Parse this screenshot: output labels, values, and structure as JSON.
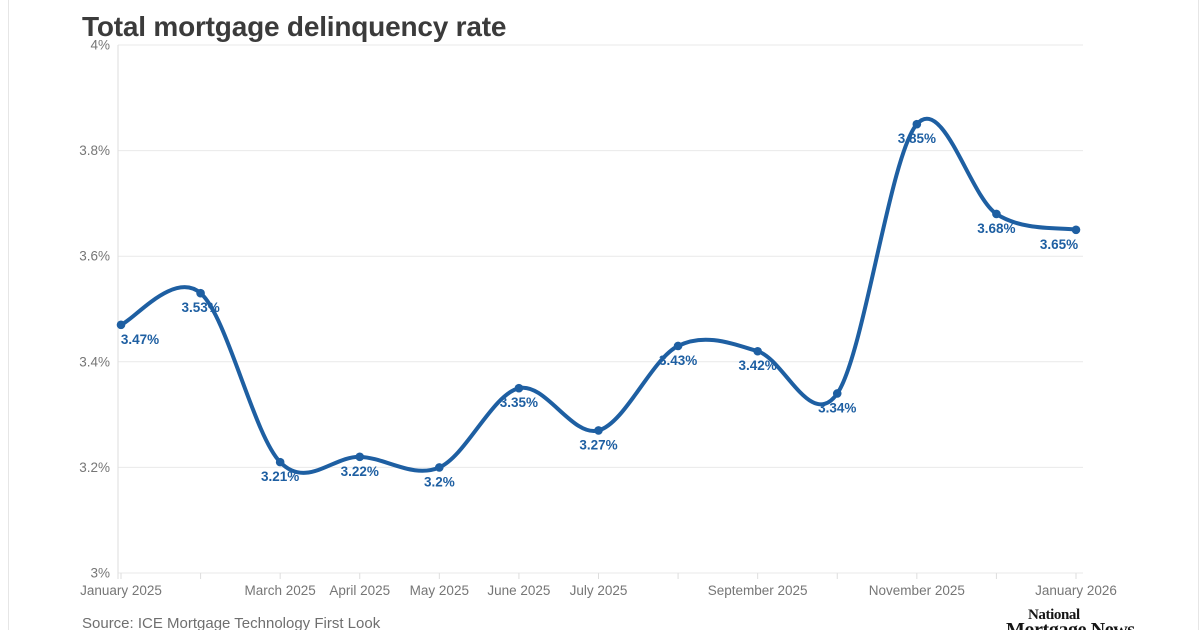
{
  "page": {
    "title": "Total mortgage delinquency rate",
    "source": "Source: ICE Mortgage Technology First Look",
    "logo": {
      "line1": "National",
      "line2": "Mortgage News"
    }
  },
  "chart_data": {
    "type": "line",
    "title": "Total mortgage delinquency rate",
    "values": [
      3.47,
      3.53,
      3.21,
      3.22,
      3.2,
      3.35,
      3.27,
      3.43,
      3.42,
      3.34,
      3.85,
      3.68,
      3.65
    ],
    "point_labels": [
      "3.47%",
      "3.53%",
      "3.21%",
      "3.22%",
      "3.2%",
      "3.35%",
      "3.27%",
      "3.43%",
      "3.42%",
      "3.34%",
      "3.85%",
      "3.68%",
      "3.65%"
    ],
    "ylim": [
      3.0,
      4.0
    ],
    "y_ticks": [
      {
        "value": 4.0,
        "label": "4%"
      },
      {
        "value": 3.8,
        "label": "3.8%"
      },
      {
        "value": 3.6,
        "label": "3.6%"
      },
      {
        "value": 3.4,
        "label": "3.4%"
      },
      {
        "value": 3.2,
        "label": "3.2%"
      },
      {
        "value": 3.0,
        "label": "3%"
      }
    ],
    "x_tick_labels": [
      {
        "index": 0,
        "label": "January 2025"
      },
      {
        "index": 2,
        "label": "March 2025"
      },
      {
        "index": 3,
        "label": "April 2025"
      },
      {
        "index": 4,
        "label": "May 2025"
      },
      {
        "index": 5,
        "label": "June 2025"
      },
      {
        "index": 6,
        "label": "July 2025"
      },
      {
        "index": 8,
        "label": "September 2025"
      },
      {
        "index": 10,
        "label": "November 2025"
      },
      {
        "index": 12,
        "label": "January 2026"
      }
    ],
    "grid": true,
    "legend": "none",
    "line_color": "#1e5fa2",
    "point_label_color": "#1e5fa2",
    "axis_text_color": "#767676",
    "grid_color": "#e9e9e9",
    "tick_color": "#dedede"
  }
}
